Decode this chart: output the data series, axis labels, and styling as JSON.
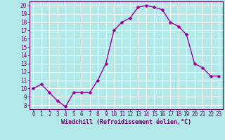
{
  "x": [
    0,
    1,
    2,
    3,
    4,
    5,
    6,
    7,
    8,
    9,
    10,
    11,
    12,
    13,
    14,
    15,
    16,
    17,
    18,
    19,
    20,
    21,
    22,
    23
  ],
  "y": [
    10,
    10.5,
    9.5,
    8.5,
    7.8,
    9.5,
    9.5,
    9.5,
    11,
    13,
    17,
    18,
    18.5,
    19.8,
    20,
    19.8,
    19.5,
    18,
    17.5,
    16.5,
    13,
    12.5,
    11.5,
    11.5
  ],
  "line_color": "#990099",
  "marker": "D",
  "marker_size": 2.5,
  "bg_color": "#b3e8e8",
  "grid_color": "#ffffff",
  "xlabel": "Windchill (Refroidissement éolien,°C)",
  "xlabel_color": "#660066",
  "xlim": [
    -0.5,
    23.5
  ],
  "ylim": [
    7.5,
    20.5
  ],
  "yticks": [
    8,
    9,
    10,
    11,
    12,
    13,
    14,
    15,
    16,
    17,
    18,
    19,
    20
  ],
  "xticks": [
    0,
    1,
    2,
    3,
    4,
    5,
    6,
    7,
    8,
    9,
    10,
    11,
    12,
    13,
    14,
    15,
    16,
    17,
    18,
    19,
    20,
    21,
    22,
    23
  ],
  "tick_label_size": 5.5,
  "tick_color": "#660066",
  "spine_color": "#660066",
  "line_width": 1.0
}
